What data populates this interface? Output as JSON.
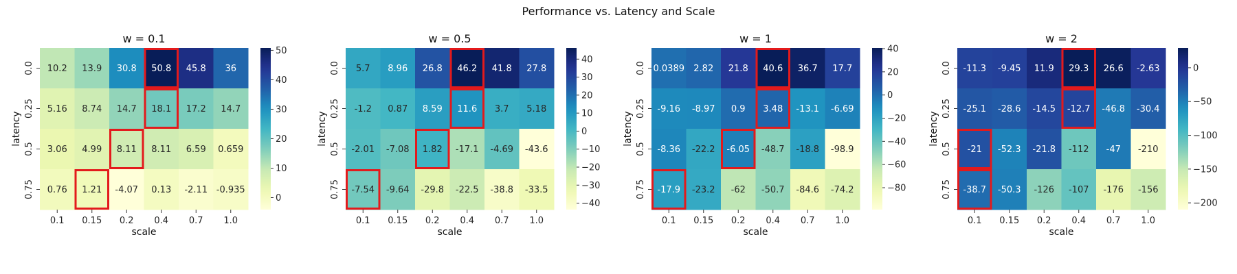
{
  "figure": {
    "suptitle": "Performance vs. Latency and Scale",
    "colormap": "YlGnBu",
    "highlight_color": "#e31a1c"
  },
  "chart_data": [
    {
      "type": "heatmap",
      "title": "w = 0.1",
      "xlabel": "scale",
      "ylabel": "latency",
      "x_categories": [
        "0.1",
        "0.15",
        "0.2",
        "0.4",
        "0.7",
        "1.0"
      ],
      "y_categories": [
        "0.0",
        "0.25",
        "0.5",
        "0.75"
      ],
      "values": [
        [
          10.2,
          13.9,
          30.8,
          50.8,
          45.8,
          36
        ],
        [
          5.16,
          8.74,
          14.7,
          18.1,
          17.2,
          14.7
        ],
        [
          3.06,
          4.99,
          8.11,
          8.11,
          6.59,
          0.659
        ],
        [
          0.76,
          1.21,
          -4.07,
          0.13,
          -2.11,
          -0.935
        ]
      ],
      "labels": [
        [
          "10.2",
          "13.9",
          "30.8",
          "50.8",
          "45.8",
          "36"
        ],
        [
          "5.16",
          "8.74",
          "14.7",
          "18.1",
          "17.2",
          "14.7"
        ],
        [
          "3.06",
          "4.99",
          "8.11",
          "8.11",
          "6.59",
          "0.659"
        ],
        [
          "0.76",
          "1.21",
          "-4.07",
          "0.13",
          "-2.11",
          "-0.935"
        ]
      ],
      "highlighted": [
        [
          0,
          3
        ],
        [
          1,
          3
        ],
        [
          2,
          2
        ],
        [
          3,
          1
        ]
      ],
      "vmin": -4.07,
      "vmax": 50.8,
      "colorbar_ticks": [
        "50",
        "40",
        "30",
        "20",
        "10",
        "0"
      ],
      "colorbar_tick_values": [
        50,
        40,
        30,
        20,
        10,
        0
      ]
    },
    {
      "type": "heatmap",
      "title": "w = 0.5",
      "xlabel": "scale",
      "ylabel": "latency",
      "x_categories": [
        "0.1",
        "0.15",
        "0.2",
        "0.4",
        "0.7",
        "1.0"
      ],
      "y_categories": [
        "0.0",
        "0.25",
        "0.5",
        "0.75"
      ],
      "values": [
        [
          5.7,
          8.96,
          26.8,
          46.2,
          41.8,
          27.8
        ],
        [
          -1.2,
          0.87,
          8.59,
          11.6,
          3.7,
          5.18
        ],
        [
          -2.01,
          -7.08,
          1.82,
          -17.1,
          -4.69,
          -43.6
        ],
        [
          -7.54,
          -9.64,
          -29.8,
          -22.5,
          -38.8,
          -33.5
        ]
      ],
      "labels": [
        [
          "5.7",
          "8.96",
          "26.8",
          "46.2",
          "41.8",
          "27.8"
        ],
        [
          "-1.2",
          "0.87",
          "8.59",
          "11.6",
          "3.7",
          "5.18"
        ],
        [
          "-2.01",
          "-7.08",
          "1.82",
          "-17.1",
          "-4.69",
          "-43.6"
        ],
        [
          "-7.54",
          "-9.64",
          "-29.8",
          "-22.5",
          "-38.8",
          "-33.5"
        ]
      ],
      "highlighted": [
        [
          0,
          3
        ],
        [
          1,
          3
        ],
        [
          2,
          2
        ],
        [
          3,
          0
        ]
      ],
      "vmin": -43.6,
      "vmax": 46.2,
      "colorbar_ticks": [
        "40",
        "30",
        "20",
        "10",
        "0",
        "−10",
        "−20",
        "−30",
        "−40"
      ],
      "colorbar_tick_values": [
        40,
        30,
        20,
        10,
        0,
        -10,
        -20,
        -30,
        -40
      ]
    },
    {
      "type": "heatmap",
      "title": "w = 1",
      "xlabel": "scale",
      "ylabel": "latency",
      "x_categories": [
        "0.1",
        "0.15",
        "0.2",
        "0.4",
        "0.7",
        "1.0"
      ],
      "y_categories": [
        "0.0",
        "0.25",
        "0.5",
        "0.75"
      ],
      "values": [
        [
          0.0389,
          2.82,
          21.8,
          40.6,
          36.7,
          17.7
        ],
        [
          -9.16,
          -8.97,
          0.9,
          3.48,
          -13.1,
          -6.69
        ],
        [
          -8.36,
          -22.2,
          -6.05,
          -48.7,
          -18.8,
          -98.9
        ],
        [
          -17.9,
          -23.2,
          -62,
          -50.7,
          -84.6,
          -74.2
        ]
      ],
      "labels": [
        [
          "0.0389",
          "2.82",
          "21.8",
          "40.6",
          "36.7",
          "17.7"
        ],
        [
          "-9.16",
          "-8.97",
          "0.9",
          "3.48",
          "-13.1",
          "-6.69"
        ],
        [
          "-8.36",
          "-22.2",
          "-6.05",
          "-48.7",
          "-18.8",
          "-98.9"
        ],
        [
          "-17.9",
          "-23.2",
          "-62",
          "-50.7",
          "-84.6",
          "-74.2"
        ]
      ],
      "highlighted": [
        [
          0,
          3
        ],
        [
          1,
          3
        ],
        [
          2,
          2
        ],
        [
          3,
          0
        ]
      ],
      "vmin": -98.9,
      "vmax": 40.6,
      "colorbar_ticks": [
        "40",
        "20",
        "0",
        "−20",
        "−40",
        "−60",
        "−80"
      ],
      "colorbar_tick_values": [
        40,
        20,
        0,
        -20,
        -40,
        -60,
        -80
      ]
    },
    {
      "type": "heatmap",
      "title": "w = 2",
      "xlabel": "scale",
      "ylabel": "latency",
      "x_categories": [
        "0.1",
        "0.15",
        "0.2",
        "0.4",
        "0.7",
        "1.0"
      ],
      "y_categories": [
        "0.0",
        "0.25",
        "0.5",
        "0.75"
      ],
      "values": [
        [
          -11.3,
          -9.45,
          11.9,
          29.3,
          26.6,
          -2.63
        ],
        [
          -25.1,
          -28.6,
          -14.5,
          -12.7,
          -46.8,
          -30.4
        ],
        [
          -21,
          -52.3,
          -21.8,
          -112,
          -47,
          -210
        ],
        [
          -38.7,
          -50.3,
          -126,
          -107,
          -176,
          -156
        ]
      ],
      "labels": [
        [
          "-11.3",
          "-9.45",
          "11.9",
          "29.3",
          "26.6",
          "-2.63"
        ],
        [
          "-25.1",
          "-28.6",
          "-14.5",
          "-12.7",
          "-46.8",
          "-30.4"
        ],
        [
          "-21",
          "-52.3",
          "-21.8",
          "-112",
          "-47",
          "-210"
        ],
        [
          "-38.7",
          "-50.3",
          "-126",
          "-107",
          "-176",
          "-156"
        ]
      ],
      "highlighted": [
        [
          0,
          3
        ],
        [
          1,
          3
        ],
        [
          2,
          0
        ],
        [
          3,
          0
        ]
      ],
      "vmin": -210,
      "vmax": 29.3,
      "colorbar_ticks": [
        "0",
        "−50",
        "−100",
        "−150",
        "−200"
      ],
      "colorbar_tick_values": [
        0,
        -50,
        -100,
        -150,
        -200
      ]
    }
  ]
}
